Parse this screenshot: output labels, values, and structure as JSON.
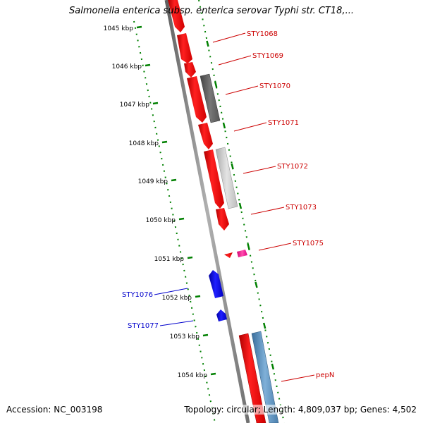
{
  "title": "Salmonella enterica subsp. enterica serovar Typhi str. CT18,...",
  "footer": {
    "accession": "Accession: NC_003198",
    "summary": "Topology: circular; Length: 4,809,037 bp; Genes: 4,502"
  },
  "ticks": [
    {
      "label": "1045 kbp"
    },
    {
      "label": "1046 kbp"
    },
    {
      "label": "1047 kbp"
    },
    {
      "label": "1048 kbp"
    },
    {
      "label": "1049 kbp"
    },
    {
      "label": "1050 kbp"
    },
    {
      "label": "1051 kbp"
    },
    {
      "label": "1052 kbp"
    },
    {
      "label": "1053 kbp"
    },
    {
      "label": "1054 kbp"
    }
  ],
  "genes": [
    {
      "name": "STY1068",
      "strand": "reverse",
      "color": "#cc0000"
    },
    {
      "name": "STY1069",
      "strand": "reverse",
      "color": "#cc0000"
    },
    {
      "name": "STY1070",
      "strand": "reverse",
      "color": "#cc0000"
    },
    {
      "name": "STY1071",
      "strand": "reverse",
      "color": "#cc0000"
    },
    {
      "name": "STY1072",
      "strand": "reverse",
      "color": "#cc0000"
    },
    {
      "name": "STY1073",
      "strand": "reverse",
      "color": "#cc0000"
    },
    {
      "name": "STY1075",
      "strand": "reverse",
      "color": "#cc0000"
    },
    {
      "name": "STY1076",
      "strand": "forward",
      "color": "#0000cc"
    },
    {
      "name": "STY1077",
      "strand": "forward",
      "color": "#0000cc"
    },
    {
      "name": "pepN",
      "strand": "reverse",
      "color": "#cc0000"
    }
  ],
  "colors": {
    "cds": "#ff0000",
    "cds_forward": "#0000ff",
    "backbone": "#808080",
    "tick": "#008000",
    "orf_dark": "#555555",
    "orf_light": "#c0c0c0",
    "orf_magenta": "#ff1493",
    "orf_blue": "#4682b4"
  }
}
